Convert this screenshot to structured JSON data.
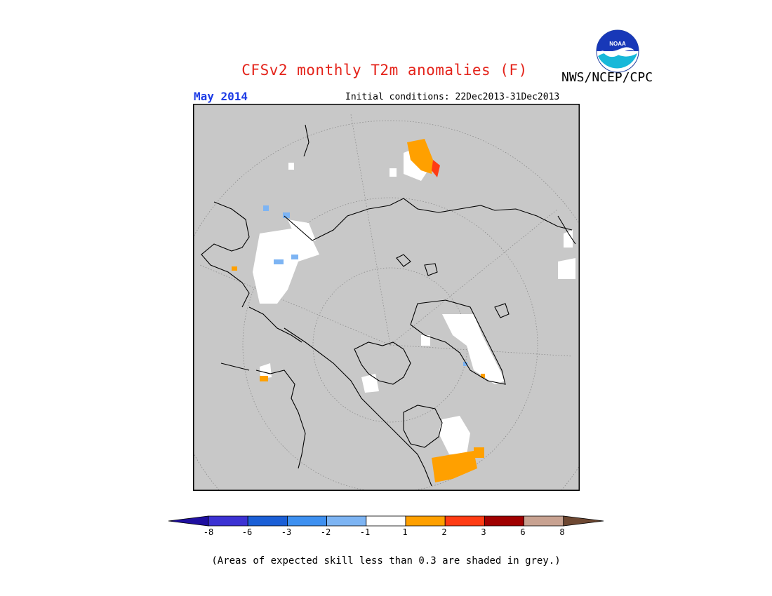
{
  "header": {
    "title": "CFSv2 monthly T2m anomalies (F)",
    "agency": "NWS/NCEP/CPC",
    "logo_text": "NOAA",
    "target_month": "May 2014",
    "initial_conditions": "Initial conditions: 22Dec2013-31Dec2013"
  },
  "legend": {
    "colors": {
      "lt_-8": "#1f0fa0",
      "-8_-6": "#3c32d3",
      "-6_-3": "#1b5fd6",
      "-3_-2": "#3e90f0",
      "-2_-1": "#7db4f3",
      "-1_1": "#ffffff",
      "1_2": "#ffa000",
      "2_3": "#ff3c14",
      "3_6": "#a00000",
      "6_8": "#c8a291",
      "gt_8": "#6e4832"
    },
    "ticks": [
      "-8",
      "-6",
      "-3",
      "-2",
      "-1",
      "1",
      "2",
      "3",
      "6",
      "8"
    ]
  },
  "footnote": "(Areas of expected skill less than 0.3 are shaded in grey.)",
  "map": {
    "projection": "north polar stereographic",
    "background_color": "#c8c8c8",
    "coastline_color": "#000000"
  }
}
